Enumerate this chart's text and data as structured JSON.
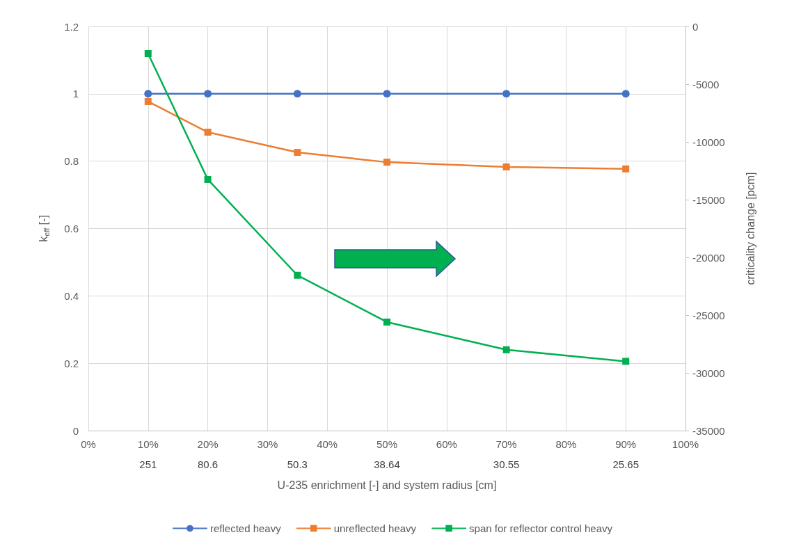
{
  "chart_data": {
    "type": "line",
    "xlabel": "U-235 enrichment [-] and system radius [cm]",
    "ylabel": "k$_{eff}$ [-]",
    "y2label": "criticality change [pcm]",
    "x": [
      10,
      20,
      35,
      50,
      70,
      90
    ],
    "series": [
      {
        "name": "reflected heavy",
        "color": "#4472c4",
        "values": [
          1.0,
          1.0,
          1.0,
          1.0,
          1.0,
          1.0
        ],
        "marker": "circle"
      },
      {
        "name": "unreflected heavy",
        "color": "#ed7d31",
        "values": [
          0.977,
          0.886,
          0.826,
          0.797,
          0.783,
          0.777
        ],
        "marker": "square"
      },
      {
        "name": "span for reflector control heavy",
        "color": "#00b050",
        "values": [
          -2350,
          -13250,
          -21550,
          -25600,
          -28000,
          -29000
        ],
        "marker": "square",
        "axis": "y2"
      }
    ],
    "xlim": [
      0,
      100
    ],
    "xticks": [
      {
        "value": 0,
        "label": "0%"
      },
      {
        "value": 10,
        "label": "10%"
      },
      {
        "value": 20,
        "label": "20%"
      },
      {
        "value": 30,
        "label": "30%"
      },
      {
        "value": 40,
        "label": "40%"
      },
      {
        "value": 50,
        "label": "50%"
      },
      {
        "value": 60,
        "label": "60%"
      },
      {
        "value": 70,
        "label": "70%"
      },
      {
        "value": 80,
        "label": "80%"
      },
      {
        "value": 90,
        "label": "90%"
      },
      {
        "value": 100,
        "label": "100%"
      }
    ],
    "annotations": [
      "251",
      "80.6",
      "50.3",
      "38.64",
      "30.55",
      "25.65"
    ],
    "ylim": [
      0,
      1.2
    ],
    "yticks": [
      0,
      0.2,
      0.4,
      0.6,
      0.8,
      1,
      1.2
    ],
    "y2lim": [
      -35000,
      0
    ],
    "y2ticks": [
      -35000,
      -30000,
      -25000,
      -20000,
      -15000,
      -10000,
      -5000,
      0
    ],
    "grid": true,
    "legend": "bottom",
    "line_style": "solid"
  }
}
